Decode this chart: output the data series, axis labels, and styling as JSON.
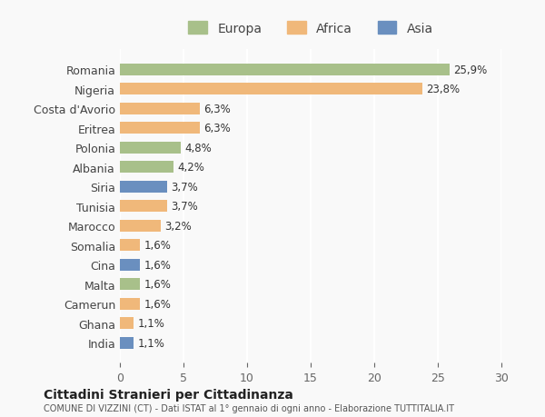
{
  "categories": [
    "Romania",
    "Nigeria",
    "Costa d'Avorio",
    "Eritrea",
    "Polonia",
    "Albania",
    "Siria",
    "Tunisia",
    "Marocco",
    "Somalia",
    "Cina",
    "Malta",
    "Camerun",
    "Ghana",
    "India"
  ],
  "values": [
    25.9,
    23.8,
    6.3,
    6.3,
    4.8,
    4.2,
    3.7,
    3.7,
    3.2,
    1.6,
    1.6,
    1.6,
    1.6,
    1.1,
    1.1
  ],
  "labels": [
    "25,9%",
    "23,8%",
    "6,3%",
    "6,3%",
    "4,8%",
    "4,2%",
    "3,7%",
    "3,7%",
    "3,2%",
    "1,6%",
    "1,6%",
    "1,6%",
    "1,6%",
    "1,1%",
    "1,1%"
  ],
  "continents": [
    "Europa",
    "Africa",
    "Africa",
    "Africa",
    "Europa",
    "Europa",
    "Asia",
    "Africa",
    "Africa",
    "Africa",
    "Asia",
    "Europa",
    "Africa",
    "Africa",
    "Asia"
  ],
  "colors": {
    "Europa": "#a8c08a",
    "Africa": "#f0b87a",
    "Asia": "#6a8fbf"
  },
  "legend_labels": [
    "Europa",
    "Africa",
    "Asia"
  ],
  "legend_colors": [
    "#a8c08a",
    "#f0b87a",
    "#6a8fbf"
  ],
  "xlim": [
    0,
    30
  ],
  "xticks": [
    0,
    5,
    10,
    15,
    20,
    25,
    30
  ],
  "title": "Cittadini Stranieri per Cittadinanza",
  "subtitle": "COMUNE DI VIZZINI (CT) - Dati ISTAT al 1° gennaio di ogni anno - Elaborazione TUTTITALIA.IT",
  "background_color": "#f9f9f9",
  "grid_color": "#ffffff",
  "bar_height": 0.6
}
